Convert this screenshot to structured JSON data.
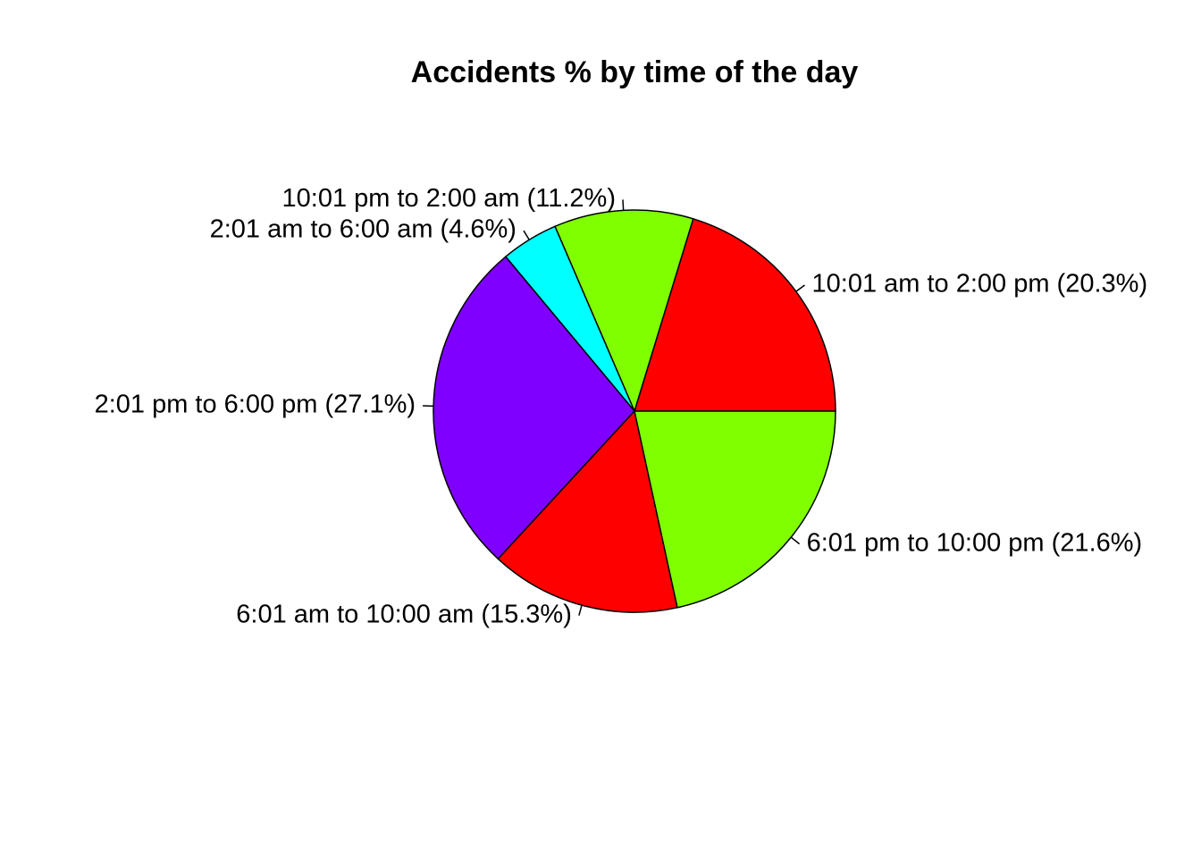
{
  "chart_data": {
    "type": "pie",
    "title": "Accidents % by time of the day",
    "direction": "counterclockwise",
    "start": "3 o'clock",
    "slices": [
      {
        "label": "10:01 am to 2:00 pm (20.3%)",
        "category": "10:01 am to 2:00 pm",
        "value": 20.3,
        "color": "#FF0000"
      },
      {
        "label": "10:01 pm to 2:00 am (11.2%)",
        "category": "10:01 pm to 2:00 am",
        "value": 11.2,
        "color": "#80FF00"
      },
      {
        "label": "2:01 am to 6:00 am (4.6%)",
        "category": "2:01 am to 6:00 am",
        "value": 4.6,
        "color": "#00FFFF"
      },
      {
        "label": "2:01 pm to 6:00 pm (27.1%)",
        "category": "2:01 pm to 6:00 pm",
        "value": 27.1,
        "color": "#8000FF"
      },
      {
        "label": "6:01 am to 10:00 am (15.3%)",
        "category": "6:01 am to 10:00 am",
        "value": 15.3,
        "color": "#FF0000"
      },
      {
        "label": "6:01 pm to 10:00 pm (21.6%)",
        "category": "6:01 pm to 10:00 pm",
        "value": 21.6,
        "color": "#80FF00"
      }
    ]
  }
}
